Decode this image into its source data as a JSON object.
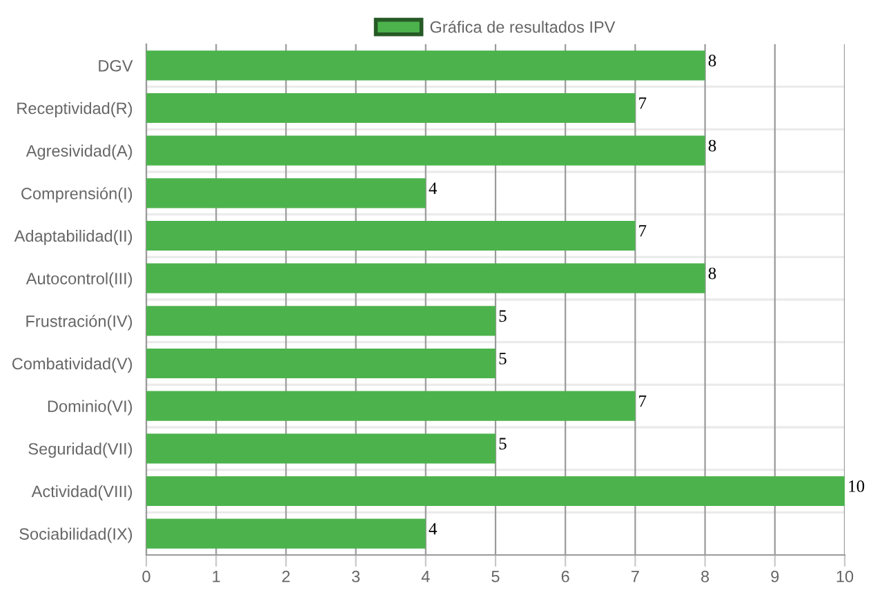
{
  "chart_data": {
    "type": "bar",
    "orientation": "horizontal",
    "categories": [
      "DGV",
      "Receptividad(R)",
      "Agresividad(A)",
      "Comprensión(I)",
      "Adaptabilidad(II)",
      "Autocontrol(III)",
      "Frustración(IV)",
      "Combatividad(V)",
      "Dominio(VI)",
      "Seguridad(VII)",
      "Actividad(VIII)",
      "Sociabilidad(IX)"
    ],
    "series": [
      {
        "name": "Gráfica de resultados IPV",
        "color": "#4cb34c",
        "values": [
          8,
          7,
          8,
          4,
          7,
          8,
          5,
          5,
          7,
          5,
          10,
          4
        ]
      }
    ],
    "xlim": [
      0,
      10
    ],
    "xticks": [
      0,
      1,
      2,
      3,
      4,
      5,
      6,
      7,
      8,
      9,
      10
    ],
    "grid": true,
    "legend": "top",
    "data_labels": true
  }
}
